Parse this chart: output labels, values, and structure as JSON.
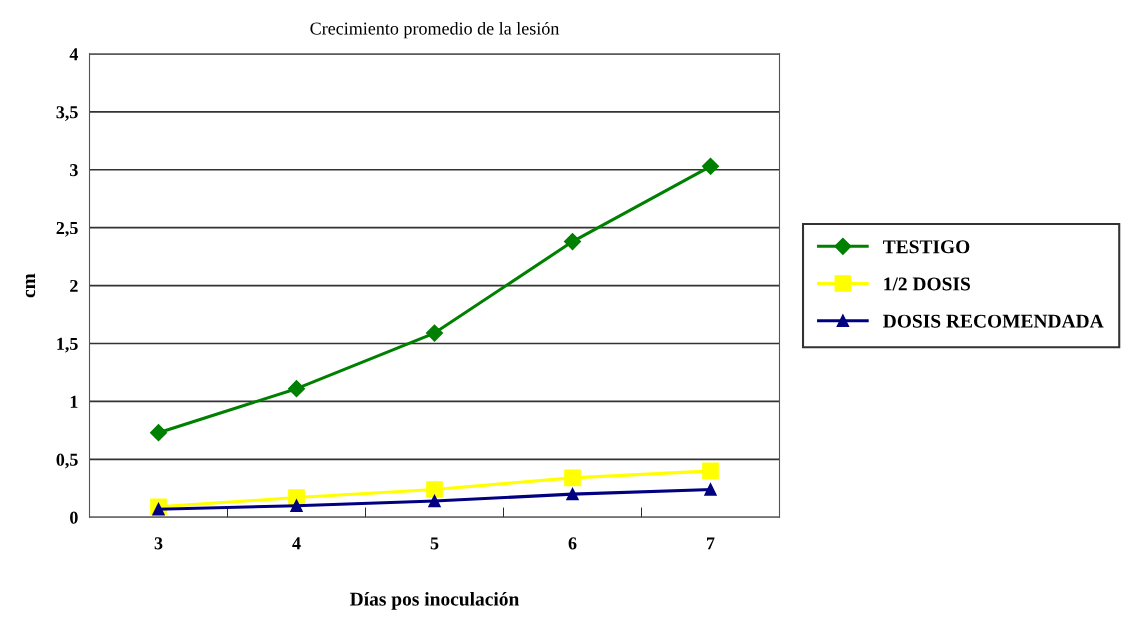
{
  "chart_data": {
    "type": "line",
    "title": "Crecimiento promedio de la lesión",
    "xlabel": "Días pos inoculación",
    "ylabel": "cm",
    "categories": [
      "3",
      "4",
      "5",
      "6",
      "7"
    ],
    "series": [
      {
        "name": "TESTIGO",
        "color": "#008000",
        "marker": "diamond",
        "values": [
          0.73,
          1.11,
          1.59,
          2.38,
          3.03
        ]
      },
      {
        "name": "1/2 DOSIS",
        "color": "#ffff00",
        "marker": "square",
        "values": [
          0.09,
          0.17,
          0.24,
          0.34,
          0.4
        ]
      },
      {
        "name": "DOSIS RECOMENDADA",
        "color": "#000080",
        "marker": "triangle",
        "values": [
          0.07,
          0.1,
          0.14,
          0.2,
          0.24
        ]
      }
    ],
    "ylim": [
      0,
      4
    ],
    "yticks": [
      0,
      {
        "value": 0.5,
        "label": "0,5"
      },
      1,
      {
        "value": 1.5,
        "label": "1,5"
      },
      2,
      {
        "value": 2.5,
        "label": "2,5"
      },
      3,
      {
        "value": 3.5,
        "label": "3,5"
      },
      4
    ],
    "grid": "y",
    "legend": "right",
    "line_style": "solid"
  }
}
